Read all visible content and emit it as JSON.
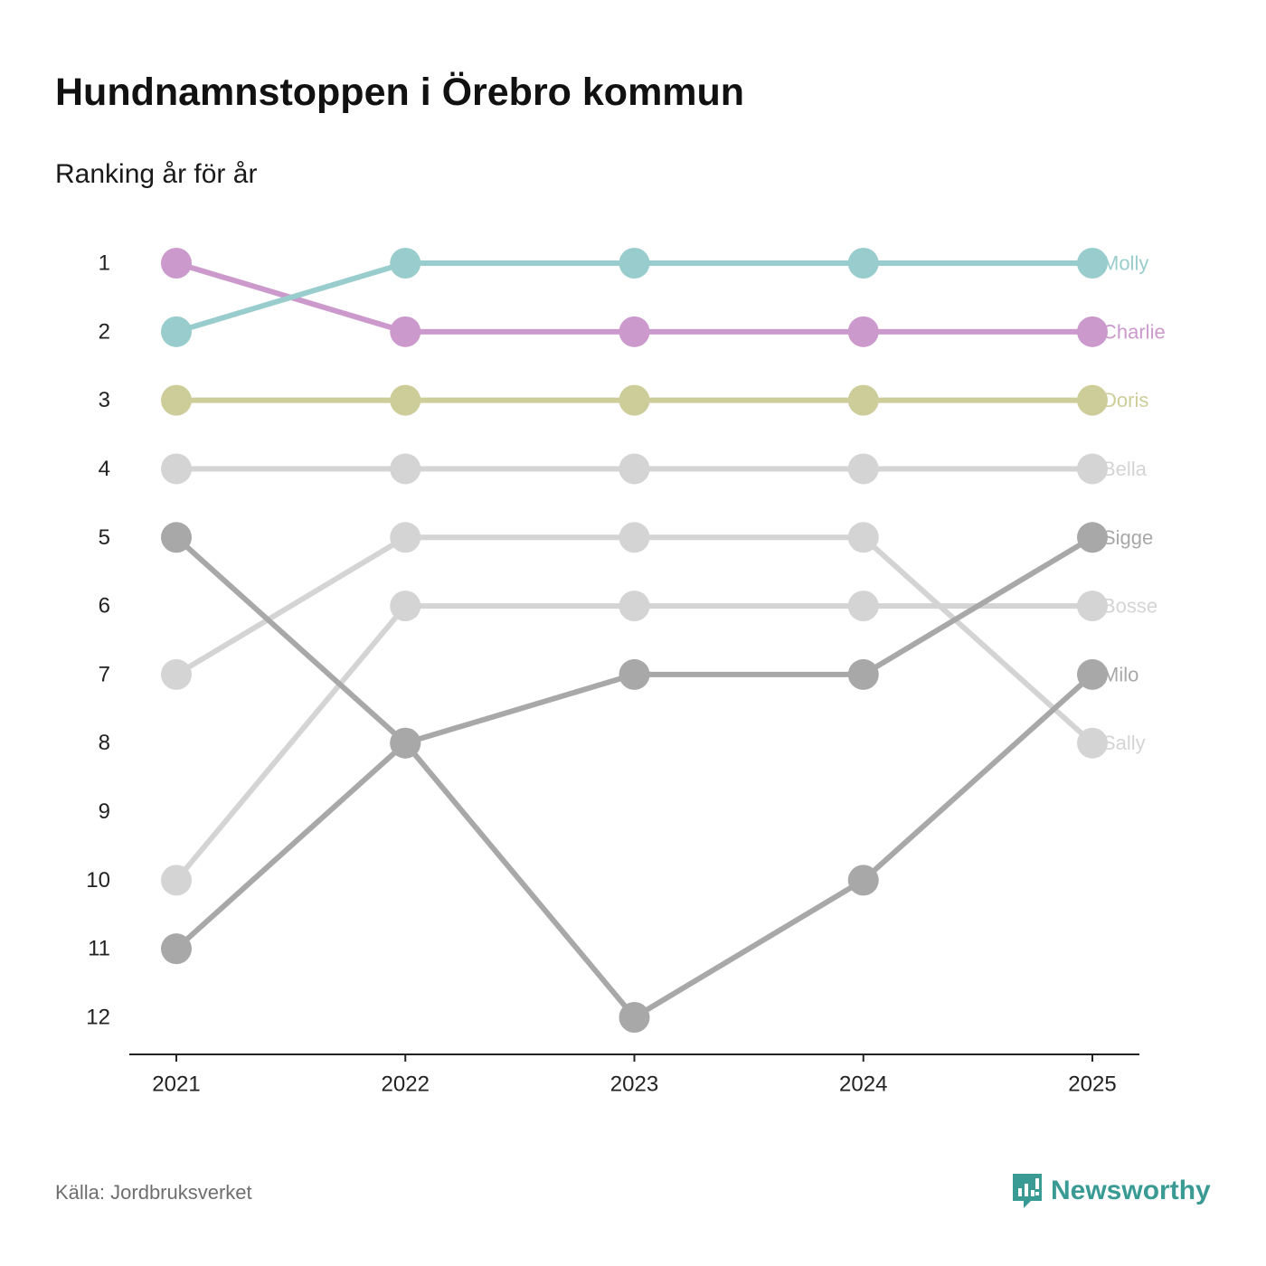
{
  "title": "Hundnamnstoppen i Örebro kommun",
  "subtitle": "Ranking år för år",
  "source": "Källa: Jordbruksverket",
  "brand": {
    "name": "Newsworthy",
    "icon": "newsworthy-logo-icon",
    "color": "#3a9a94"
  },
  "chart_data": {
    "type": "line",
    "title": "Hundnamnstoppen i Örebro kommun",
    "subtitle": "Ranking år för år",
    "xlabel": "",
    "ylabel": "",
    "x": [
      "2021",
      "2022",
      "2023",
      "2024",
      "2025"
    ],
    "y_ticks": [
      "1",
      "2",
      "3",
      "4",
      "5",
      "6",
      "7",
      "8",
      "9",
      "10",
      "11",
      "12"
    ],
    "ylim": [
      1,
      12
    ],
    "y_inverted": true,
    "grid": false,
    "legend": "direct labels at right end of each line",
    "series": [
      {
        "name": "Sally",
        "values": [
          7,
          5,
          5,
          5,
          8
        ],
        "color": "#d4d4d4"
      },
      {
        "name": "Bosse",
        "values": [
          10,
          6,
          6,
          6,
          6
        ],
        "color": "#d4d4d4"
      },
      {
        "name": "Bella",
        "values": [
          4,
          4,
          4,
          4,
          4
        ],
        "color": "#d4d4d4"
      },
      {
        "name": "Sigge",
        "values": [
          11,
          8,
          7,
          7,
          5
        ],
        "color": "#a8a8a8"
      },
      {
        "name": "Milo",
        "values": [
          5,
          8,
          12,
          10,
          7
        ],
        "color": "#a8a8a8"
      },
      {
        "name": "Doris",
        "values": [
          3,
          3,
          3,
          3,
          3
        ],
        "color": "#cdcd9a"
      },
      {
        "name": "Charlie",
        "values": [
          1,
          2,
          2,
          2,
          2
        ],
        "color": "#cc99cc"
      },
      {
        "name": "Molly",
        "values": [
          2,
          1,
          1,
          1,
          1
        ],
        "color": "#99cccc"
      }
    ]
  }
}
